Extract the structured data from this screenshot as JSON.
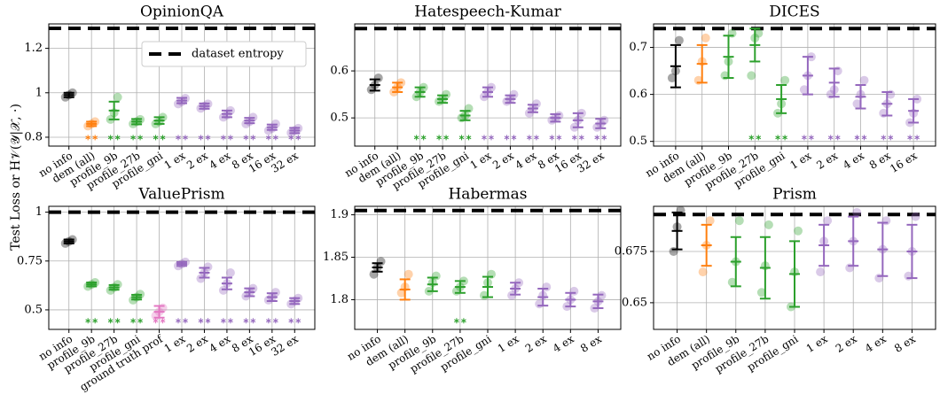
{
  "figure": {
    "ylabel": "Test Loss or H𝒱(𝒴|𝒳, ·)",
    "legend_label": "dataset entropy",
    "legend_corner": "upper right",
    "entropy_color": "#000000"
  },
  "chart_data": [
    {
      "type": "errorbar",
      "title": "OpinionQA",
      "categories": [
        "no info",
        "dem (all)",
        "profile_9b",
        "profile_27b",
        "profile_gni",
        "1 ex",
        "2 ex",
        "4 ex",
        "8 ex",
        "16 ex",
        "32 ex"
      ],
      "colors": [
        "#000000",
        "#ff7f0e",
        "#2ca02c",
        "#2ca02c",
        "#2ca02c",
        "#9467bd",
        "#9467bd",
        "#9467bd",
        "#9467bd",
        "#9467bd",
        "#9467bd"
      ],
      "values": [
        0.99,
        0.86,
        0.92,
        0.87,
        0.875,
        0.965,
        0.94,
        0.905,
        0.875,
        0.845,
        0.83
      ],
      "errors": [
        0.01,
        0.01,
        0.04,
        0.012,
        0.015,
        0.012,
        0.012,
        0.015,
        0.012,
        0.012,
        0.012
      ],
      "points": [
        [
          0.98,
          0.99,
          1.0
        ],
        [
          0.85,
          0.86,
          0.87
        ],
        [
          0.88,
          0.91,
          0.98
        ],
        [
          0.86,
          0.87,
          0.88
        ],
        [
          0.86,
          0.87,
          0.89
        ],
        [
          0.95,
          0.96,
          0.975
        ],
        [
          0.93,
          0.94,
          0.95
        ],
        [
          0.89,
          0.9,
          0.92
        ],
        [
          0.86,
          0.87,
          0.89
        ],
        [
          0.83,
          0.84,
          0.86
        ],
        [
          0.82,
          0.83,
          0.84
        ]
      ],
      "significant": [
        false,
        true,
        true,
        true,
        true,
        true,
        true,
        true,
        true,
        true,
        true
      ],
      "entropy": 1.29,
      "ylim": [
        0.76,
        1.31
      ],
      "yticks": [
        0.8,
        1,
        1.2
      ],
      "grid": true,
      "legend": true
    },
    {
      "type": "errorbar",
      "title": "Hatespeech-Kumar",
      "categories": [
        "no info",
        "dem (all)",
        "profile_9b",
        "profile_27b",
        "profile_gni",
        "1 ex",
        "2 ex",
        "4 ex",
        "8 ex",
        "16 ex",
        "32 ex"
      ],
      "colors": [
        "#000000",
        "#ff7f0e",
        "#2ca02c",
        "#2ca02c",
        "#2ca02c",
        "#9467bd",
        "#9467bd",
        "#9467bd",
        "#9467bd",
        "#9467bd",
        "#9467bd"
      ],
      "values": [
        0.57,
        0.565,
        0.555,
        0.54,
        0.505,
        0.555,
        0.54,
        0.52,
        0.5,
        0.495,
        0.488
      ],
      "errors": [
        0.012,
        0.01,
        0.01,
        0.008,
        0.01,
        0.01,
        0.008,
        0.008,
        0.008,
        0.015,
        0.01
      ],
      "points": [
        [
          0.56,
          0.57,
          0.585
        ],
        [
          0.555,
          0.565,
          0.575
        ],
        [
          0.545,
          0.555,
          0.565
        ],
        [
          0.535,
          0.54,
          0.55
        ],
        [
          0.5,
          0.505,
          0.52
        ],
        [
          0.545,
          0.555,
          0.565
        ],
        [
          0.535,
          0.54,
          0.55
        ],
        [
          0.51,
          0.52,
          0.53
        ],
        [
          0.495,
          0.5,
          0.505
        ],
        [
          0.48,
          0.495,
          0.51
        ],
        [
          0.48,
          0.488,
          0.495
        ]
      ],
      "significant": [
        false,
        false,
        true,
        true,
        true,
        true,
        true,
        true,
        true,
        true,
        true
      ],
      "entropy": 0.69,
      "ylim": [
        0.44,
        0.7
      ],
      "yticks": [
        0.5,
        0.6
      ],
      "grid": true
    },
    {
      "type": "errorbar",
      "title": "DICES",
      "categories": [
        "no info",
        "dem (all)",
        "profile_9b",
        "profile_27b",
        "profile_gni",
        "1 ex",
        "2 ex",
        "4 ex",
        "8 ex",
        "16 ex"
      ],
      "colors": [
        "#000000",
        "#ff7f0e",
        "#2ca02c",
        "#2ca02c",
        "#2ca02c",
        "#9467bd",
        "#9467bd",
        "#9467bd",
        "#9467bd",
        "#9467bd"
      ],
      "values": [
        0.66,
        0.665,
        0.68,
        0.705,
        0.59,
        0.64,
        0.625,
        0.595,
        0.58,
        0.565
      ],
      "errors": [
        0.045,
        0.04,
        0.045,
        0.035,
        0.03,
        0.04,
        0.03,
        0.025,
        0.025,
        0.025
      ],
      "points": [
        [
          0.635,
          0.65,
          0.715
        ],
        [
          0.63,
          0.67,
          0.72
        ],
        [
          0.64,
          0.67,
          0.73
        ],
        [
          0.64,
          0.72,
          0.73
        ],
        [
          0.56,
          0.58,
          0.63
        ],
        [
          0.61,
          0.64,
          0.68
        ],
        [
          0.6,
          0.61,
          0.65
        ],
        [
          0.58,
          0.6,
          0.63
        ],
        [
          0.56,
          0.58,
          0.6
        ],
        [
          0.54,
          0.56,
          0.59
        ]
      ],
      "significant": [
        false,
        false,
        false,
        true,
        true,
        true,
        true,
        true,
        true,
        true
      ],
      "entropy": 0.74,
      "ylim": [
        0.49,
        0.75
      ],
      "yticks": [
        0.5,
        0.6,
        0.7
      ],
      "grid": true
    },
    {
      "type": "errorbar",
      "title": "ValuePrism",
      "categories": [
        "no info",
        "profile_9b",
        "profile_27b",
        "profile_gni",
        "ground truth prof",
        "1 ex",
        "2 ex",
        "4 ex",
        "8 ex",
        "16 ex",
        "32 ex"
      ],
      "colors": [
        "#000000",
        "#2ca02c",
        "#2ca02c",
        "#2ca02c",
        "#e377c2",
        "#9467bd",
        "#9467bd",
        "#9467bd",
        "#9467bd",
        "#9467bd",
        "#9467bd"
      ],
      "values": [
        0.85,
        0.63,
        0.615,
        0.565,
        0.49,
        0.735,
        0.69,
        0.635,
        0.59,
        0.565,
        0.545
      ],
      "errors": [
        0.01,
        0.01,
        0.012,
        0.012,
        0.03,
        0.01,
        0.025,
        0.03,
        0.02,
        0.02,
        0.015
      ],
      "points": [
        [
          0.84,
          0.85,
          0.86
        ],
        [
          0.62,
          0.63,
          0.64
        ],
        [
          0.6,
          0.615,
          0.63
        ],
        [
          0.55,
          0.565,
          0.58
        ],
        [
          0.47,
          0.49,
          0.51
        ],
        [
          0.725,
          0.735,
          0.745
        ],
        [
          0.66,
          0.69,
          0.72
        ],
        [
          0.6,
          0.635,
          0.69
        ],
        [
          0.57,
          0.59,
          0.61
        ],
        [
          0.55,
          0.565,
          0.59
        ],
        [
          0.53,
          0.545,
          0.56
        ]
      ],
      "significant": [
        false,
        true,
        true,
        true,
        true,
        true,
        true,
        true,
        true,
        true,
        true
      ],
      "entropy": 1.0,
      "ylim": [
        0.4,
        1.03
      ],
      "yticks": [
        0.5,
        0.75,
        1
      ],
      "grid": true
    },
    {
      "type": "errorbar",
      "title": "Habermas",
      "categories": [
        "no info",
        "dem (all)",
        "profile_9b",
        "profile_27b",
        "profile_gni",
        "1 ex",
        "2 ex",
        "4 ex",
        "8 ex"
      ],
      "colors": [
        "#000000",
        "#ff7f0e",
        "#2ca02c",
        "#2ca02c",
        "#2ca02c",
        "#9467bd",
        "#9467bd",
        "#9467bd",
        "#9467bd"
      ],
      "values": [
        1.838,
        1.812,
        1.818,
        1.815,
        1.815,
        1.813,
        1.803,
        1.8,
        1.798
      ],
      "errors": [
        0.005,
        0.012,
        0.008,
        0.007,
        0.012,
        0.007,
        0.01,
        0.008,
        0.008
      ],
      "points": [
        [
          1.83,
          1.838,
          1.845
        ],
        [
          1.808,
          1.815,
          1.83
        ],
        [
          1.81,
          1.82,
          1.828
        ],
        [
          1.81,
          1.815,
          1.822
        ],
        [
          1.805,
          1.82,
          1.83
        ],
        [
          1.805,
          1.813,
          1.82
        ],
        [
          1.795,
          1.805,
          1.815
        ],
        [
          1.792,
          1.8,
          1.81
        ],
        [
          1.79,
          1.798,
          1.805
        ]
      ],
      "significant": [
        false,
        false,
        false,
        true,
        false,
        false,
        false,
        false,
        false
      ],
      "entropy": 1.905,
      "ylim": [
        1.765,
        1.91
      ],
      "yticks": [
        1.8,
        1.85,
        1.9
      ],
      "grid": true
    },
    {
      "type": "errorbar",
      "title": "Prism",
      "categories": [
        "no info",
        "dem (all)",
        "profile_9b",
        "profile_27b",
        "profile_gni",
        "1 ex",
        "2 ex",
        "4 ex",
        "8 ex"
      ],
      "colors": [
        "#000000",
        "#ff7f0e",
        "#2ca02c",
        "#2ca02c",
        "#2ca02c",
        "#9467bd",
        "#9467bd",
        "#9467bd",
        "#9467bd"
      ],
      "values": [
        0.685,
        0.678,
        0.67,
        0.667,
        0.664,
        0.678,
        0.68,
        0.676,
        0.675
      ],
      "errors": [
        0.009,
        0.01,
        0.012,
        0.015,
        0.016,
        0.01,
        0.012,
        0.013,
        0.013
      ],
      "points": [
        [
          0.675,
          0.687,
          0.695
        ],
        [
          0.665,
          0.678,
          0.69
        ],
        [
          0.66,
          0.67,
          0.69
        ],
        [
          0.655,
          0.668,
          0.688
        ],
        [
          0.648,
          0.665,
          0.685
        ],
        [
          0.665,
          0.68,
          0.69
        ],
        [
          0.667,
          0.68,
          0.694
        ],
        [
          0.662,
          0.676,
          0.69
        ],
        [
          0.663,
          0.675,
          0.692
        ]
      ],
      "significant": [
        false,
        false,
        false,
        false,
        false,
        false,
        false,
        false,
        false
      ],
      "entropy": 0.693,
      "ylim": [
        0.637,
        0.697
      ],
      "yticks": [
        0.65,
        0.675
      ],
      "grid": true
    }
  ]
}
